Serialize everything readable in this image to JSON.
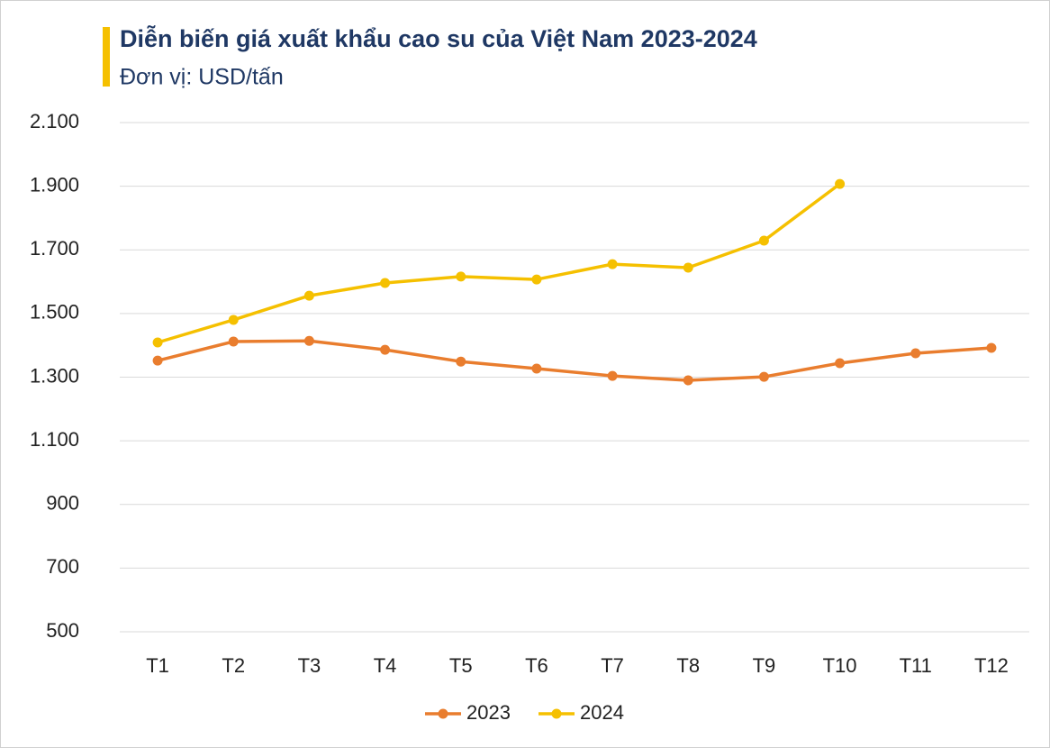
{
  "chart_data": {
    "type": "line",
    "title": "Diễn biến giá xuất khẩu cao su của Việt Nam 2023-2024",
    "subtitle": "Đơn vị: USD/tấn",
    "categories": [
      "T1",
      "T2",
      "T3",
      "T4",
      "T5",
      "T6",
      "T7",
      "T8",
      "T9",
      "T10",
      "T11",
      "T12"
    ],
    "series": [
      {
        "name": "2023",
        "color": "#e97d2e",
        "values": [
          1352,
          1412,
          1414,
          1386,
          1349,
          1327,
          1304,
          1290,
          1301,
          1344,
          1375,
          1392
        ]
      },
      {
        "name": "2024",
        "color": "#f5c000",
        "values": [
          1409,
          1480,
          1556,
          1596,
          1616,
          1607,
          1655,
          1644,
          1729,
          1907,
          null,
          null
        ]
      }
    ],
    "ylim": [
      500,
      2100
    ],
    "yticks": [
      500,
      700,
      900,
      {
        "value": 1100,
        "label": "1.100"
      },
      {
        "value": 1300,
        "label": "1.300"
      },
      {
        "value": 1500,
        "label": "1.500"
      },
      {
        "value": 1700,
        "label": "1.700"
      },
      {
        "value": 1900,
        "label": "1.900"
      },
      {
        "value": 2100,
        "label": "2.100"
      }
    ],
    "grid": true,
    "legend": "bottom"
  }
}
